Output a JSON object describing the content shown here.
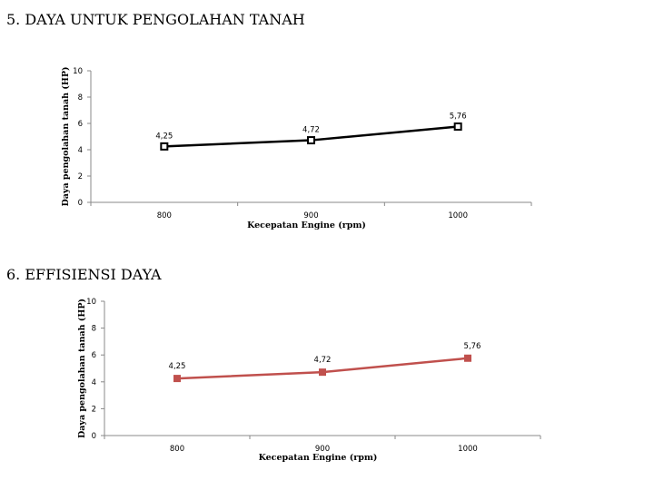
{
  "headings": {
    "chart1": "5. DAYA  UNTUK PENGOLAHAN TANAH",
    "chart2": "6.  EFFISIENSI DAYA"
  },
  "chart_data": [
    {
      "type": "line",
      "categories": [
        "800",
        "900",
        "1000"
      ],
      "series": [
        {
          "values": [
            4.25,
            4.72,
            5.76
          ],
          "labels": [
            "4,25",
            "4,72",
            "5,76"
          ],
          "color": "#000000",
          "marker": "square-open"
        }
      ],
      "xlabel": "Kecepatan Engine (rpm)",
      "ylabel": "Daya pengolahan tanah (HP)",
      "ylim": [
        0,
        10
      ],
      "yticks": [
        0,
        2,
        4,
        6,
        8,
        10
      ],
      "grid": false
    },
    {
      "type": "line",
      "categories": [
        "800",
        "900",
        "1000"
      ],
      "series": [
        {
          "values": [
            4.25,
            4.72,
            5.76
          ],
          "labels": [
            "4,25",
            "4,72",
            "5,76"
          ],
          "color": "#c0504d",
          "marker": "square-filled"
        }
      ],
      "xlabel": "Kecepatan Engine (rpm)",
      "ylabel": "Daya pengolahan tanah (HP)",
      "ylim": [
        0,
        10
      ],
      "yticks": [
        0,
        2,
        4,
        6,
        8,
        10
      ],
      "grid": false
    }
  ]
}
